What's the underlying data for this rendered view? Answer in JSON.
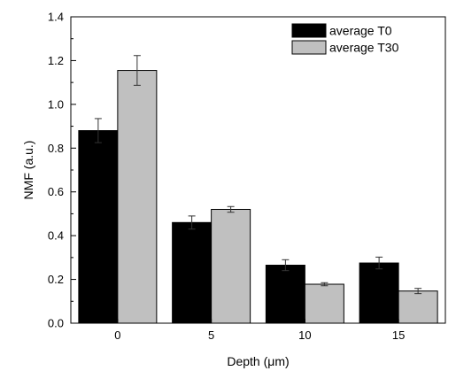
{
  "chart_data": {
    "type": "bar",
    "categories": [
      "0",
      "5",
      "10",
      "15"
    ],
    "series": [
      {
        "name": "average T0",
        "values": [
          0.88,
          0.46,
          0.265,
          0.275
        ],
        "errors": [
          0.055,
          0.03,
          0.025,
          0.027
        ],
        "color": "#000000"
      },
      {
        "name": "average T30",
        "values": [
          1.155,
          0.52,
          0.178,
          0.147
        ],
        "errors": [
          0.068,
          0.013,
          0.007,
          0.012
        ],
        "color": "#c0c0c0"
      }
    ],
    "xlabel": "Depth (μm)",
    "ylabel": "NMF (a.u.)",
    "ylim": [
      0.0,
      1.4
    ],
    "yticks": [
      "0.0",
      "0.2",
      "0.4",
      "0.6",
      "0.8",
      "1.0",
      "1.2",
      "1.4"
    ],
    "grid": false,
    "legend_position": "top-right"
  }
}
